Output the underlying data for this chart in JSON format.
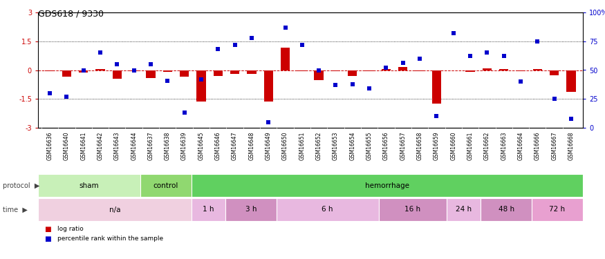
{
  "title": "GDS618 / 9330",
  "samples": [
    "GSM16636",
    "GSM16640",
    "GSM16641",
    "GSM16642",
    "GSM16643",
    "GSM16644",
    "GSM16637",
    "GSM16638",
    "GSM16639",
    "GSM16645",
    "GSM16646",
    "GSM16647",
    "GSM16648",
    "GSM16649",
    "GSM16650",
    "GSM16651",
    "GSM16652",
    "GSM16653",
    "GSM16654",
    "GSM16655",
    "GSM16656",
    "GSM16657",
    "GSM16658",
    "GSM16659",
    "GSM16660",
    "GSM16661",
    "GSM16662",
    "GSM16663",
    "GSM16664",
    "GSM16666",
    "GSM16667",
    "GSM16668"
  ],
  "log_ratio": [
    -0.05,
    -0.35,
    -0.12,
    0.05,
    -0.45,
    -0.05,
    -0.42,
    -0.1,
    -0.35,
    -1.65,
    -0.32,
    -0.2,
    -0.18,
    -1.63,
    1.18,
    -0.05,
    -0.52,
    -0.05,
    -0.3,
    -0.05,
    0.05,
    0.15,
    -0.05,
    -1.75,
    0.0,
    -0.1,
    0.1,
    0.05,
    -0.05,
    0.05,
    -0.28,
    -1.12
  ],
  "percentile": [
    30,
    27,
    50,
    65,
    55,
    50,
    55,
    41,
    13,
    42,
    68,
    72,
    78,
    5,
    87,
    72,
    50,
    37,
    38,
    34,
    52,
    56,
    60,
    10,
    82,
    62,
    65,
    62,
    40,
    75,
    25,
    8
  ],
  "protocol_groups": [
    {
      "label": "sham",
      "start": 0,
      "end": 5,
      "color": "#c8f0b8"
    },
    {
      "label": "control",
      "start": 6,
      "end": 8,
      "color": "#90d870"
    },
    {
      "label": "hemorrhage",
      "start": 9,
      "end": 31,
      "color": "#60d060"
    }
  ],
  "time_groups": [
    {
      "label": "n/a",
      "start": 0,
      "end": 8,
      "color": "#f0d0e0"
    },
    {
      "label": "1 h",
      "start": 9,
      "end": 10,
      "color": "#e8b8e0"
    },
    {
      "label": "3 h",
      "start": 11,
      "end": 13,
      "color": "#d090c0"
    },
    {
      "label": "6 h",
      "start": 14,
      "end": 19,
      "color": "#e8b8e0"
    },
    {
      "label": "16 h",
      "start": 20,
      "end": 23,
      "color": "#d090c0"
    },
    {
      "label": "24 h",
      "start": 24,
      "end": 25,
      "color": "#e8b8e0"
    },
    {
      "label": "48 h",
      "start": 26,
      "end": 28,
      "color": "#d090c0"
    },
    {
      "label": "72 h",
      "start": 29,
      "end": 31,
      "color": "#e8a0d0"
    }
  ],
  "bar_color": "#cc0000",
  "dot_color": "#0000cc",
  "hline_color": "#cc0000",
  "bar_width": 0.55,
  "dot_size": 22,
  "label_bg": "#d8d8d8",
  "figsize": [
    8.75,
    3.75
  ],
  "dpi": 100
}
